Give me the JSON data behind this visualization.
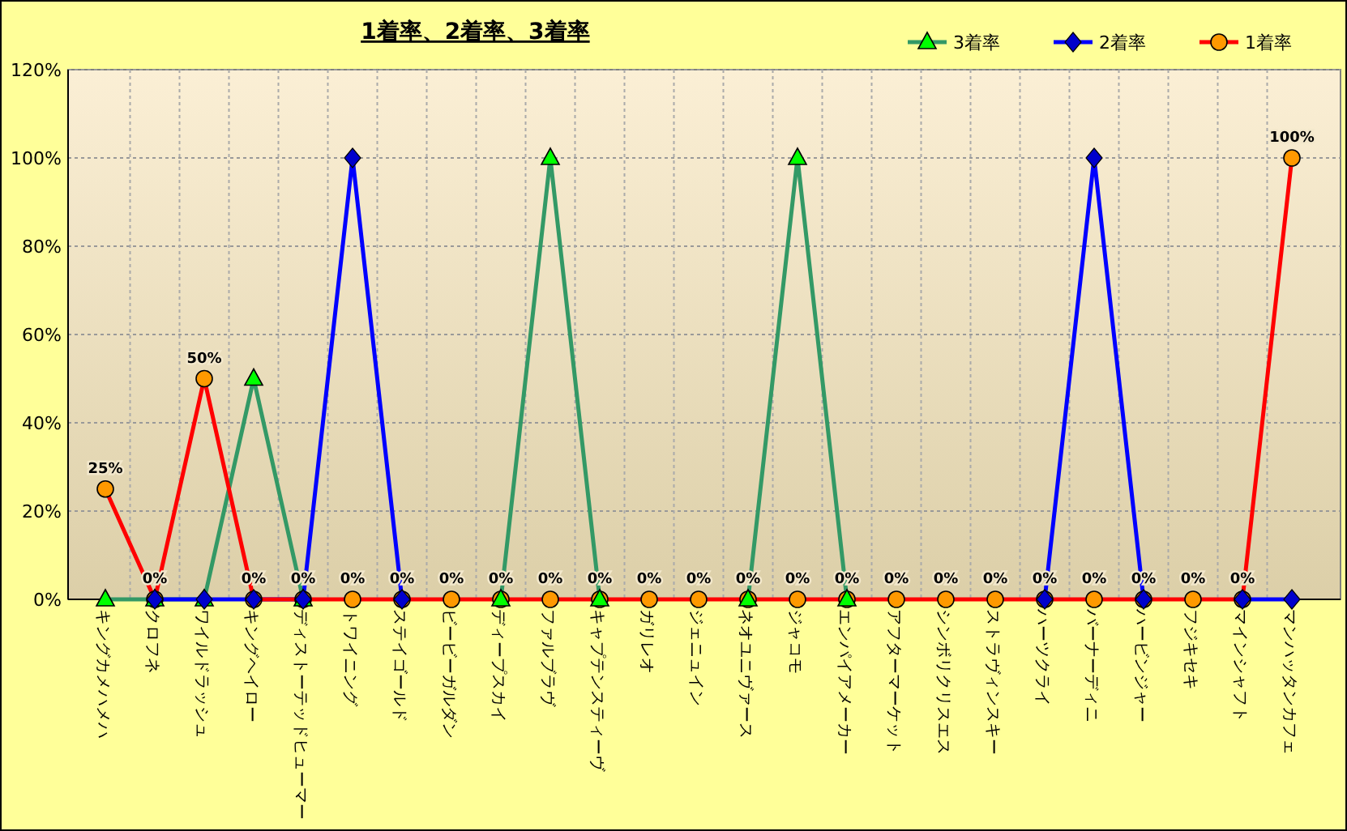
{
  "chart_data": {
    "type": "line",
    "title": "1着率、2着率、3着率",
    "categories": [
      "キングカメハメハ",
      "クロフネ",
      "ワイルドラッシュ",
      "キングヘイロー",
      "ディストーテッドヒューマー",
      "トワイニング",
      "ステイゴールド",
      "ビービーガルダン",
      "ディープスカイ",
      "ファルブラヴ",
      "キャプテンスティーヴ",
      "ガリレオ",
      "ジェニュイン",
      "ネオユニヴァース",
      "ジャコモ",
      "エンパイアメーカー",
      "アフターマーケット",
      "シンボリクリスエス",
      "ストラヴィンスキー",
      "ハーツクライ",
      "バーナーディニ",
      "ハービンジャー",
      "フジキセキ",
      "マインシャフト",
      "マンハッタンカフェ"
    ],
    "series": [
      {
        "name": "3着率",
        "color": "#339966",
        "marker": "triangle",
        "values": [
          0,
          0,
          0,
          50,
          0,
          null,
          null,
          null,
          0,
          100,
          0,
          null,
          null,
          0,
          100,
          0,
          null,
          null,
          null,
          null,
          null,
          null,
          null,
          null,
          null
        ]
      },
      {
        "name": "2着率",
        "color": "#0000ff",
        "marker": "diamond",
        "values": [
          null,
          0,
          0,
          0,
          0,
          100,
          0,
          null,
          null,
          null,
          null,
          null,
          null,
          null,
          null,
          null,
          null,
          null,
          null,
          0,
          100,
          0,
          null,
          0,
          0
        ]
      },
      {
        "name": "1着率",
        "color": "#ff0000",
        "marker": "circle",
        "values": [
          25,
          0,
          50,
          0,
          0,
          0,
          0,
          0,
          0,
          0,
          0,
          0,
          0,
          0,
          0,
          0,
          0,
          0,
          0,
          0,
          0,
          0,
          0,
          0,
          100
        ],
        "value_labels": [
          "25%",
          "0%",
          "50%",
          "0%",
          "0%",
          "0%",
          "0%",
          "0%",
          "0%",
          "0%",
          "0%",
          "0%",
          "0%",
          "0%",
          "0%",
          "0%",
          "0%",
          "0%",
          "0%",
          "0%",
          "0%",
          "0%",
          "0%",
          "0%",
          "100%"
        ]
      }
    ],
    "ylim": [
      0,
      120
    ],
    "yticks": [
      {
        "value": 0,
        "label": "0%"
      },
      {
        "value": 20,
        "label": "20%"
      },
      {
        "value": 40,
        "label": "40%"
      },
      {
        "value": 60,
        "label": "60%"
      },
      {
        "value": 80,
        "label": "80%"
      },
      {
        "value": 100,
        "label": "100%"
      },
      {
        "value": 120,
        "label": "120%"
      }
    ],
    "grid": true,
    "legend": "top right"
  }
}
